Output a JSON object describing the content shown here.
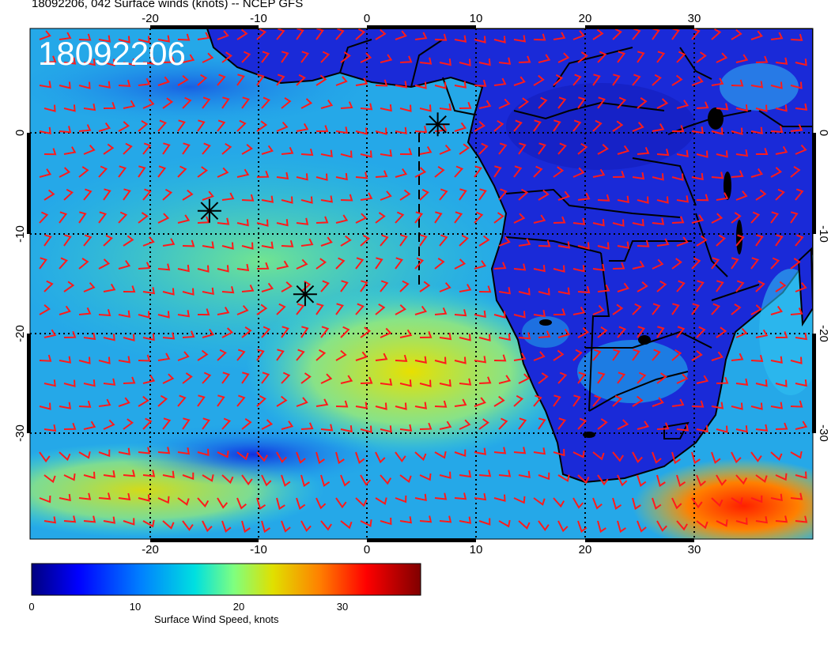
{
  "title": "18092206, 042 Surface winds (knots) -- NCEP GFS",
  "timestamp_overlay": "18092206",
  "map": {
    "projection": "cylindrical",
    "lon_range": [
      -31,
      41
    ],
    "lat_range": [
      -39.5,
      9.5
    ],
    "lon_ticks": [
      "-20",
      "-10",
      "0",
      "10",
      "20",
      "30"
    ],
    "lat_ticks": [
      "0",
      "-10",
      "-20",
      "-30"
    ],
    "barb_color": "#ff1a1a",
    "coastline_color": "#000000",
    "markers": [
      {
        "name": "star-marker-1",
        "lon": 6.5,
        "lat": 0.3
      },
      {
        "name": "star-marker-2",
        "lon": -14.5,
        "lat": -8.0
      },
      {
        "name": "star-marker-3",
        "lon": -5.7,
        "lat": -16.0
      }
    ]
  },
  "colorbar": {
    "title": "Surface Wind Speed, knots",
    "ticks": [
      "0",
      "10",
      "20",
      "30"
    ],
    "range": [
      0,
      38
    ],
    "colors": [
      "#00007f",
      "#0000ff",
      "#0080ff",
      "#00e0e0",
      "#7fff7f",
      "#e0e000",
      "#ff8000",
      "#ff0000",
      "#7f0000"
    ]
  }
}
